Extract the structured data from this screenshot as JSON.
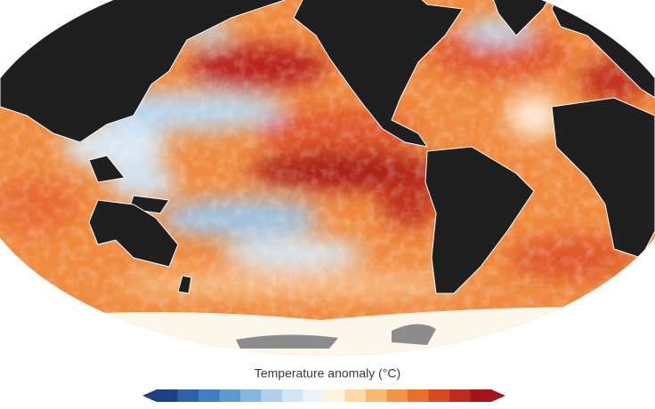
{
  "colorbar": {
    "title": "Temperature anomaly (°C)"
  }
}
